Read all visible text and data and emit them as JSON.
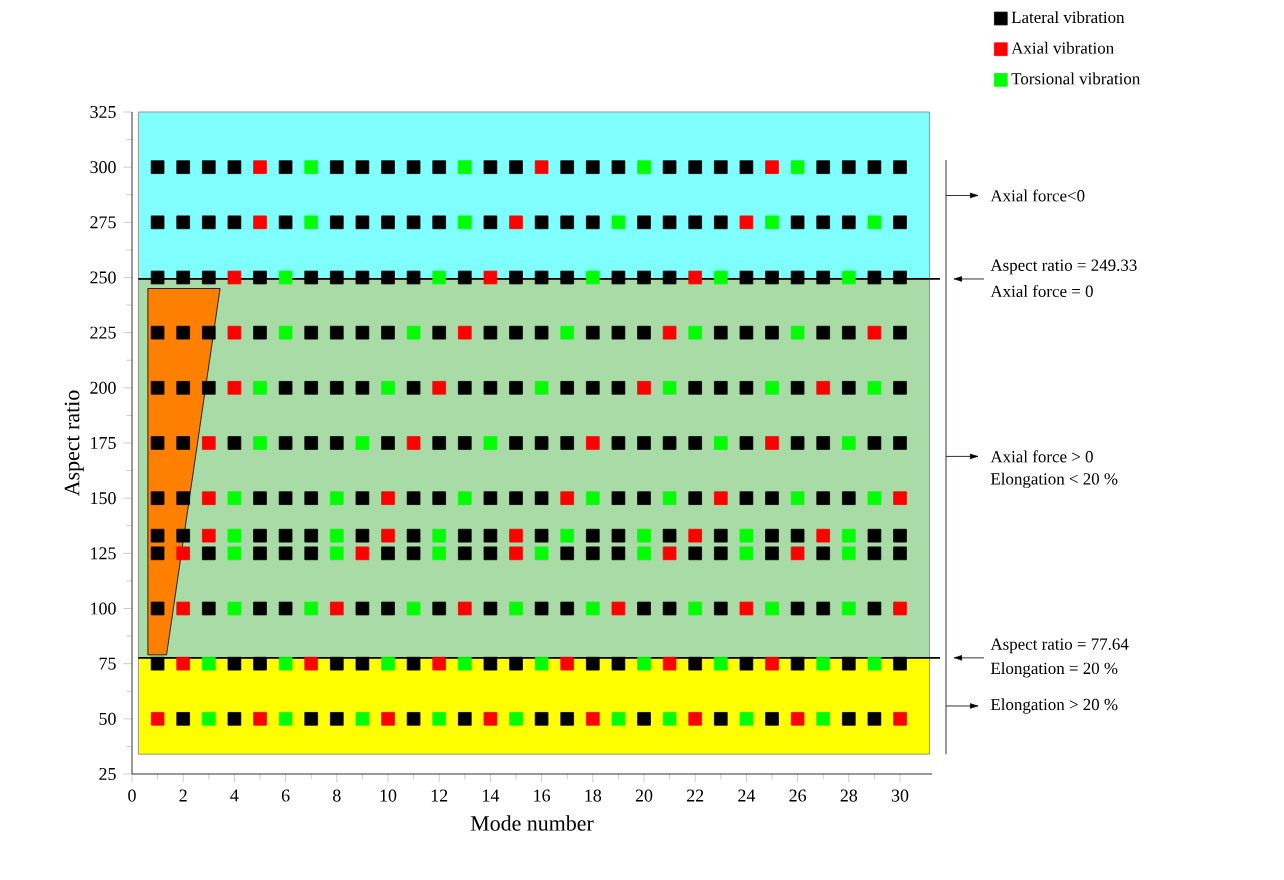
{
  "chart_data": {
    "type": "scatter",
    "xlabel": "Mode number",
    "ylabel": "Aspect ratio",
    "xlim": [
      0,
      31.25
    ],
    "ylim": [
      25,
      325
    ],
    "xticks": [
      0,
      2,
      4,
      6,
      8,
      10,
      12,
      14,
      16,
      18,
      20,
      22,
      24,
      26,
      28,
      30
    ],
    "yticks": [
      25,
      50,
      75,
      100,
      125,
      150,
      175,
      200,
      225,
      250,
      275,
      300,
      325
    ],
    "marker": "square",
    "legend": "top right",
    "bands": [
      {
        "axis": "y",
        "from": 249.33,
        "to": 325,
        "color": "#80ffff",
        "label": "Axial force<0"
      },
      {
        "axis": "y",
        "from": 77.64,
        "to": 249.33,
        "color": "#a8dba6",
        "label": "Axial force > 0"
      },
      {
        "axis": "y",
        "from": 34,
        "to": 77.64,
        "color": "#ffff00",
        "label": "Elongation > 20 %"
      }
    ],
    "ref_lines": [
      {
        "axis": "y",
        "value": 249.33,
        "label": "Aspect ratio = 249.33",
        "color": "#000000"
      },
      {
        "axis": "y",
        "value": 77.64,
        "label": "Aspect ratio = 77.64",
        "color": "#000000"
      }
    ],
    "annotations": [
      "Axial force = 0",
      "Elongation < 20 %",
      "Elongation = 20 %"
    ],
    "series": [
      {
        "type": "area",
        "marker": "none",
        "color": "#ff8000",
        "x": [
          0.62,
          3.44,
          1.35,
          0.62
        ],
        "values": [
          245,
          245,
          79,
          79
        ]
      },
      {
        "name": "Lateral vibration",
        "color": "#000000",
        "x": [
          1,
          2,
          3,
          4,
          6,
          8,
          9,
          10,
          11,
          12,
          14,
          15,
          17,
          18,
          19,
          21,
          22,
          23,
          24,
          27,
          28,
          29,
          30,
          1,
          2,
          3,
          4,
          6,
          8,
          9,
          10,
          11,
          12,
          14,
          16,
          17,
          18,
          20,
          21,
          22,
          23,
          26,
          27,
          28,
          30,
          1,
          2,
          3,
          5,
          7,
          8,
          9,
          10,
          11,
          13,
          15,
          16,
          17,
          19,
          20,
          21,
          24,
          25,
          26,
          27,
          29,
          30,
          1,
          2,
          3,
          5,
          7,
          8,
          9,
          10,
          12,
          14,
          15,
          16,
          18,
          19,
          20,
          23,
          24,
          25,
          27,
          28,
          30,
          1,
          2,
          3,
          6,
          7,
          8,
          9,
          11,
          13,
          14,
          15,
          17,
          18,
          19,
          22,
          23,
          24,
          26,
          28,
          30,
          1,
          2,
          4,
          6,
          7,
          8,
          10,
          12,
          13,
          15,
          16,
          17,
          19,
          20,
          21,
          22,
          24,
          26,
          27,
          29,
          30,
          1,
          2,
          5,
          6,
          7,
          9,
          11,
          12,
          14,
          15,
          16,
          19,
          20,
          22,
          24,
          25,
          27,
          28,
          1,
          2,
          5,
          6,
          7,
          9,
          11,
          13,
          14,
          16,
          18,
          19,
          21,
          23,
          25,
          26,
          29,
          30,
          1,
          3,
          5,
          6,
          7,
          10,
          11,
          13,
          14,
          17,
          18,
          19,
          22,
          23,
          25,
          27,
          29,
          30,
          1,
          3,
          5,
          6,
          9,
          10,
          12,
          14,
          16,
          17,
          20,
          21,
          23,
          26,
          27,
          29,
          1,
          4,
          5,
          8,
          9,
          11,
          14,
          15,
          18,
          19,
          22,
          24,
          26,
          28,
          30,
          2,
          4,
          7,
          8,
          11,
          13,
          16,
          17,
          20,
          23,
          25,
          28,
          29
        ],
        "values": [
          300,
          300,
          300,
          300,
          300,
          300,
          300,
          300,
          300,
          300,
          300,
          300,
          300,
          300,
          300,
          300,
          300,
          300,
          300,
          300,
          300,
          300,
          300,
          275,
          275,
          275,
          275,
          275,
          275,
          275,
          275,
          275,
          275,
          275,
          275,
          275,
          275,
          275,
          275,
          275,
          275,
          275,
          275,
          275,
          275,
          250,
          250,
          250,
          250,
          250,
          250,
          250,
          250,
          250,
          250,
          250,
          250,
          250,
          250,
          250,
          250,
          250,
          250,
          250,
          250,
          250,
          250,
          225,
          225,
          225,
          225,
          225,
          225,
          225,
          225,
          225,
          225,
          225,
          225,
          225,
          225,
          225,
          225,
          225,
          225,
          225,
          225,
          225,
          200,
          200,
          200,
          200,
          200,
          200,
          200,
          200,
          200,
          200,
          200,
          200,
          200,
          200,
          200,
          200,
          200,
          200,
          200,
          200,
          175,
          175,
          175,
          175,
          175,
          175,
          175,
          175,
          175,
          175,
          175,
          175,
          175,
          175,
          175,
          175,
          175,
          175,
          175,
          175,
          175,
          150,
          150,
          150,
          150,
          150,
          150,
          150,
          150,
          150,
          150,
          150,
          150,
          150,
          150,
          150,
          150,
          150,
          150,
          133,
          133,
          133,
          133,
          133,
          133,
          133,
          133,
          133,
          133,
          133,
          133,
          133,
          133,
          133,
          133,
          133,
          133,
          125,
          125,
          125,
          125,
          125,
          125,
          125,
          125,
          125,
          125,
          125,
          125,
          125,
          125,
          125,
          125,
          125,
          125,
          100,
          100,
          100,
          100,
          100,
          100,
          100,
          100,
          100,
          100,
          100,
          100,
          100,
          100,
          100,
          100,
          75,
          75,
          75,
          75,
          75,
          75,
          75,
          75,
          75,
          75,
          75,
          75,
          75,
          75,
          75,
          50,
          50,
          50,
          50,
          50,
          50,
          50,
          50,
          50,
          50,
          50,
          50,
          50
        ]
      },
      {
        "name": "Axial vibration",
        "color": "#ff0000",
        "x": [
          5,
          16,
          25,
          5,
          15,
          24,
          4,
          14,
          22,
          4,
          13,
          21,
          29,
          4,
          12,
          20,
          27,
          3,
          11,
          18,
          25,
          3,
          10,
          17,
          23,
          30,
          3,
          10,
          15,
          22,
          27,
          2,
          9,
          15,
          21,
          26,
          2,
          8,
          13,
          19,
          24,
          30,
          2,
          7,
          12,
          17,
          21,
          25,
          1,
          5,
          10,
          14,
          18,
          22,
          26,
          30
        ],
        "values": [
          300,
          300,
          300,
          275,
          275,
          275,
          250,
          250,
          250,
          225,
          225,
          225,
          225,
          200,
          200,
          200,
          200,
          175,
          175,
          175,
          175,
          150,
          150,
          150,
          150,
          150,
          133,
          133,
          133,
          133,
          133,
          125,
          125,
          125,
          125,
          125,
          100,
          100,
          100,
          100,
          100,
          100,
          75,
          75,
          75,
          75,
          75,
          75,
          50,
          50,
          50,
          50,
          50,
          50,
          50,
          50
        ]
      },
      {
        "name": "Torsional vibration",
        "color": "#00ff00",
        "x": [
          7,
          13,
          20,
          26,
          7,
          13,
          19,
          25,
          29,
          6,
          12,
          18,
          23,
          28,
          6,
          11,
          17,
          22,
          26,
          5,
          10,
          16,
          21,
          25,
          29,
          5,
          9,
          14,
          23,
          28,
          4,
          8,
          13,
          18,
          21,
          26,
          29,
          4,
          8,
          12,
          17,
          20,
          24,
          28,
          4,
          8,
          12,
          16,
          20,
          24,
          28,
          4,
          7,
          11,
          15,
          18,
          22,
          25,
          28,
          3,
          6,
          10,
          13,
          16,
          20,
          23,
          27,
          29,
          3,
          6,
          9,
          12,
          15,
          19,
          21,
          24,
          27
        ],
        "values": [
          300,
          300,
          300,
          300,
          275,
          275,
          275,
          275,
          275,
          250,
          250,
          250,
          250,
          250,
          225,
          225,
          225,
          225,
          225,
          200,
          200,
          200,
          200,
          200,
          200,
          175,
          175,
          175,
          175,
          175,
          150,
          150,
          150,
          150,
          150,
          150,
          150,
          133,
          133,
          133,
          133,
          133,
          133,
          133,
          125,
          125,
          125,
          125,
          125,
          125,
          125,
          100,
          100,
          100,
          100,
          100,
          100,
          100,
          100,
          75,
          75,
          75,
          75,
          75,
          75,
          75,
          75,
          75,
          50,
          50,
          50,
          50,
          50,
          50,
          50,
          50,
          50
        ]
      }
    ]
  }
}
